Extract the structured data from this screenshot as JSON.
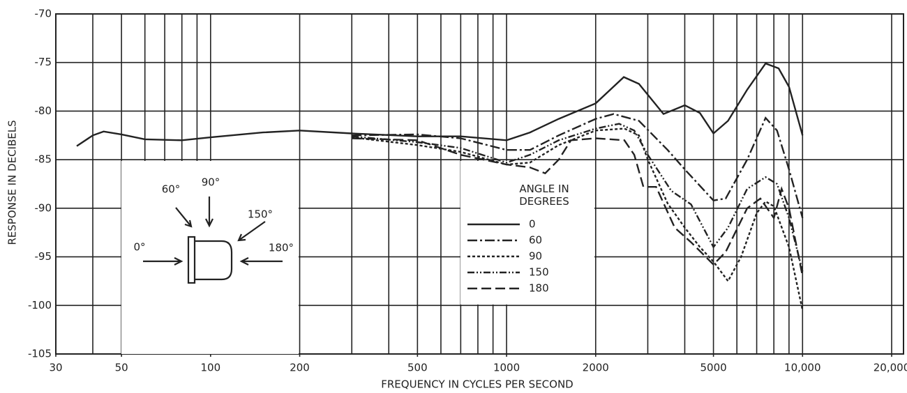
{
  "chart_data": {
    "type": "line",
    "xlabel": "FREQUENCY IN CYCLES PER SECOND",
    "ylabel": "RESPONSE IN DECIBELS",
    "xscale": "log",
    "xlim": [
      30,
      20000
    ],
    "ylim": [
      -105,
      -70
    ],
    "xticks": [
      30,
      50,
      100,
      200,
      500,
      1000,
      2000,
      5000,
      {
        "value": 10000,
        "label": "10,000"
      },
      {
        "value": 20000,
        "label": "20,000"
      }
    ],
    "xgrid": [
      40,
      50,
      60,
      70,
      80,
      90,
      100,
      200,
      300,
      400,
      500,
      600,
      700,
      800,
      900,
      1000,
      2000,
      3000,
      4000,
      5000,
      6000,
      7000,
      8000,
      9000,
      10000,
      20000
    ],
    "yticks": [
      -70,
      -75,
      -80,
      -85,
      -90,
      -95,
      -100,
      -105
    ],
    "grid": true,
    "legend_title": "ANGLE IN DEGREES",
    "annotations": [
      "60°",
      "90°",
      "150°",
      "0°",
      "180°"
    ],
    "series": [
      {
        "name": "0",
        "color": "#222",
        "dash": "none",
        "x": [
          35.3,
          40,
          43.5,
          50,
          60,
          80,
          100,
          150,
          200,
          300,
          500,
          700,
          1000,
          1200,
          1500,
          2000,
          2490,
          2800,
          3390,
          4000,
          4500,
          5000,
          5600,
          6500,
          7500,
          8300,
          9000,
          10000
        ],
        "values": [
          -83.6,
          -82.5,
          -82.1,
          -82.4,
          -82.9,
          -83,
          -82.7,
          -82.2,
          -82,
          -82.3,
          -82.6,
          -82.6,
          -83,
          -82.2,
          -80.8,
          -79.2,
          -76.5,
          -77.2,
          -80.3,
          -79.4,
          -80.2,
          -82.3,
          -81,
          -77.8,
          -75.1,
          -75.6,
          -77.5,
          -82.5
        ]
      },
      {
        "name": "60",
        "color": "#222",
        "dash": "14 4 3 4",
        "x": [
          300,
          500,
          700,
          1000,
          1200,
          1500,
          2000,
          2300,
          2800,
          3500,
          4000,
          5000,
          5500,
          6500,
          7500,
          8200,
          9000,
          10000
        ],
        "values": [
          -82.5,
          -82.4,
          -82.8,
          -84,
          -84,
          -82.5,
          -80.8,
          -80.3,
          -81,
          -84,
          -86,
          -89.2,
          -89,
          -85,
          -80.7,
          -82,
          -86,
          -91
        ]
      },
      {
        "name": "90",
        "color": "#222",
        "dash": "4 3",
        "x": [
          300,
          500,
          700,
          1000,
          1200,
          1500,
          2000,
          2500,
          2800,
          3000,
          3500,
          4000,
          4500,
          5000,
          5600,
          6200,
          7000,
          7500,
          8000,
          9000,
          10000
        ],
        "values": [
          -82.7,
          -83.5,
          -84.2,
          -85.5,
          -85.3,
          -83.5,
          -82,
          -81.8,
          -82.5,
          -85,
          -89.5,
          -92,
          -94,
          -95.5,
          -97.5,
          -95,
          -90.5,
          -89.3,
          -89.8,
          -94,
          -100.5
        ]
      },
      {
        "name": "150",
        "color": "#222",
        "dash": "10 3 2 3 2 3",
        "x": [
          300,
          500,
          700,
          1000,
          1200,
          1500,
          2000,
          2400,
          2700,
          3000,
          3600,
          4200,
          5000,
          5600,
          6500,
          7500,
          8200,
          9000,
          10000
        ],
        "values": [
          -82.6,
          -83.2,
          -83.8,
          -85.3,
          -84.5,
          -83,
          -81.8,
          -81.3,
          -82,
          -84.5,
          -88.2,
          -89.6,
          -94,
          -92,
          -88,
          -86.8,
          -87.5,
          -91,
          -96.5
        ]
      },
      {
        "name": "180",
        "color": "#222",
        "dash": "14 6",
        "x": [
          300,
          500,
          700,
          1000,
          1200,
          1350,
          1500,
          1650,
          2000,
          2500,
          2700,
          2900,
          3200,
          3700,
          4200,
          5000,
          5500,
          6500,
          7200,
          8000,
          8500,
          9000,
          10000
        ],
        "values": [
          -82.8,
          -83,
          -84.5,
          -85.5,
          -85.8,
          -86.4,
          -85,
          -83,
          -82.8,
          -83,
          -84.5,
          -87.8,
          -87.8,
          -92,
          -93.5,
          -95.8,
          -94.5,
          -90,
          -89,
          -91,
          -88,
          -90,
          -97
        ]
      }
    ]
  }
}
